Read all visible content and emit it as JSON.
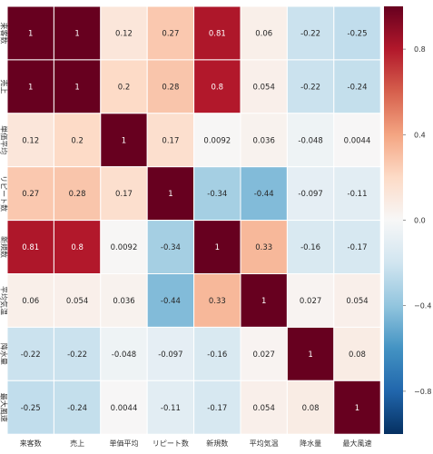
{
  "chart_data": {
    "type": "heatmap",
    "title": "",
    "xlabel": "",
    "ylabel": "",
    "rows": [
      "来客数",
      "売上",
      "単価平均",
      "リピート数",
      "新規数",
      "平均気温",
      "降水量",
      "最大風速"
    ],
    "cols": [
      "来客数",
      "売上",
      "単価平均",
      "リピート数",
      "新規数",
      "平均気温",
      "降水量",
      "最大風速"
    ],
    "values": [
      [
        1,
        1,
        0.12,
        0.27,
        0.81,
        0.06,
        -0.22,
        -0.25
      ],
      [
        1,
        1,
        0.2,
        0.28,
        0.8,
        0.054,
        -0.22,
        -0.24
      ],
      [
        0.12,
        0.2,
        1,
        0.17,
        0.0092,
        0.036,
        -0.048,
        0.0044
      ],
      [
        0.27,
        0.28,
        0.17,
        1,
        -0.34,
        -0.44,
        -0.097,
        -0.11
      ],
      [
        0.81,
        0.8,
        0.0092,
        -0.34,
        1,
        0.33,
        -0.16,
        -0.17
      ],
      [
        0.06,
        0.054,
        0.036,
        -0.44,
        0.33,
        1,
        0.027,
        0.054
      ],
      [
        -0.22,
        -0.22,
        -0.048,
        -0.097,
        -0.16,
        0.027,
        1,
        0.08
      ],
      [
        -0.25,
        -0.24,
        0.0044,
        -0.11,
        -0.17,
        0.054,
        0.08,
        1
      ]
    ],
    "labels": [
      [
        "1",
        "1",
        "0.12",
        "0.27",
        "0.81",
        "0.06",
        "-0.22",
        "-0.25"
      ],
      [
        "1",
        "1",
        "0.2",
        "0.28",
        "0.8",
        "0.054",
        "-0.22",
        "-0.24"
      ],
      [
        "0.12",
        "0.2",
        "1",
        "0.17",
        "0.0092",
        "0.036",
        "-0.048",
        "0.0044"
      ],
      [
        "0.27",
        "0.28",
        "0.17",
        "1",
        "-0.34",
        "-0.44",
        "-0.097",
        "-0.11"
      ],
      [
        "0.81",
        "0.8",
        "0.0092",
        "-0.34",
        "1",
        "0.33",
        "-0.16",
        "-0.17"
      ],
      [
        "0.06",
        "0.054",
        "0.036",
        "-0.44",
        "0.33",
        "1",
        "0.027",
        "0.054"
      ],
      [
        "-0.22",
        "-0.22",
        "-0.048",
        "-0.097",
        "-0.16",
        "0.027",
        "1",
        "0.08"
      ],
      [
        "-0.25",
        "-0.24",
        "0.0044",
        "-0.11",
        "-0.17",
        "0.054",
        "0.08",
        "1"
      ]
    ],
    "colorscale": "RdBu_r",
    "vmin": -1,
    "vmax": 1,
    "colorbar": {
      "ticks": [
        0.8,
        0.4,
        0.0,
        -0.4,
        -0.8
      ],
      "tick_labels": [
        "0.8",
        "0.4",
        "0.0",
        "−0.4",
        "−0.8"
      ]
    },
    "grid": true
  }
}
